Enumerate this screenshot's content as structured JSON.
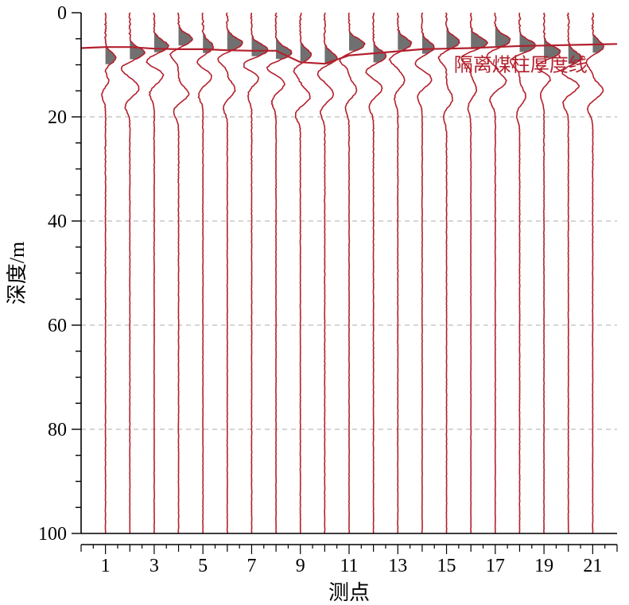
{
  "chart_data": {
    "type": "line",
    "title": "",
    "xlabel": "测点",
    "ylabel": "深度/m",
    "xlim": [
      0,
      22
    ],
    "ylim": [
      100,
      0
    ],
    "y_inverted": true,
    "grid": {
      "horizontal": true,
      "style": "dashed"
    },
    "x_ticks": [
      1,
      3,
      5,
      7,
      9,
      11,
      13,
      15,
      17,
      19,
      21
    ],
    "x_tick_labels": [
      "1",
      "3",
      "5",
      "7",
      "9",
      "11",
      "13",
      "15",
      "17",
      "19",
      "21"
    ],
    "y_ticks": [
      0,
      20,
      40,
      60,
      80,
      100
    ],
    "y_tick_labels": [
      "0",
      "20",
      "40",
      "60",
      "80",
      "100"
    ],
    "trace_positions": [
      1,
      2,
      3,
      4,
      5,
      6,
      7,
      8,
      9,
      10,
      11,
      12,
      13,
      14,
      15,
      16,
      17,
      18,
      19,
      20,
      21
    ],
    "series": [
      {
        "name": "隔离煤柱厚度线",
        "x": [
          0,
          1,
          2,
          3,
          4,
          5,
          6,
          7,
          8,
          9,
          10,
          11,
          12,
          13,
          14,
          15,
          16,
          17,
          18,
          19,
          20,
          21,
          22
        ],
        "y": [
          6.8,
          6.6,
          6.6,
          6.9,
          7.0,
          7.0,
          7.2,
          7.3,
          7.3,
          9.5,
          9.8,
          8.2,
          7.8,
          7.4,
          7.0,
          6.9,
          6.8,
          6.6,
          6.4,
          6.3,
          6.2,
          6.1,
          6.0
        ]
      }
    ],
    "annotation": {
      "text": "隔离煤柱厚度线",
      "x": 15.3,
      "y": 10
    },
    "colors": {
      "trace": "#b3202c",
      "fill": "#707070",
      "grid": "#c8c8c8",
      "axis": "#000000"
    }
  }
}
